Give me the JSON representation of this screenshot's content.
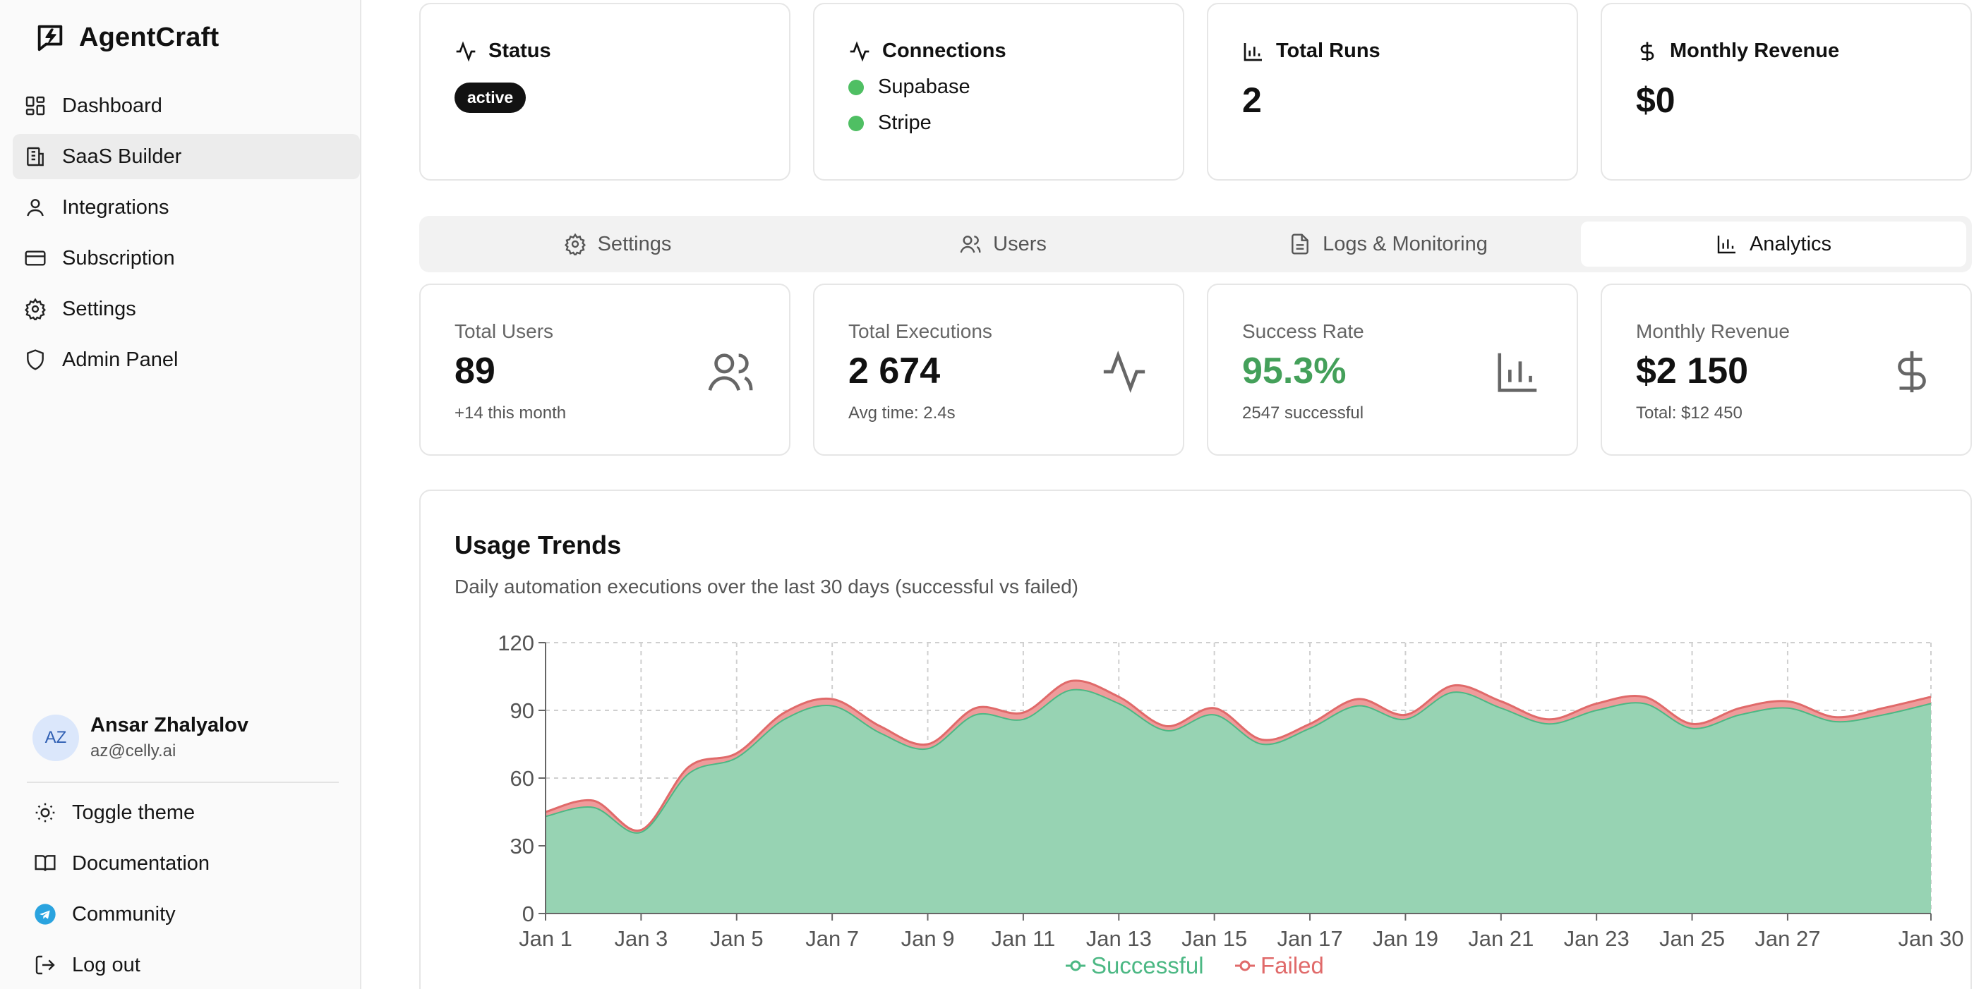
{
  "brand": {
    "name": "AgentCraft"
  },
  "sidebar": {
    "items": [
      {
        "label": "Dashboard",
        "icon": "dashboard-icon"
      },
      {
        "label": "SaaS Builder",
        "icon": "building-icon",
        "active": true
      },
      {
        "label": "Integrations",
        "icon": "user-icon"
      },
      {
        "label": "Subscription",
        "icon": "credit-card-icon"
      },
      {
        "label": "Settings",
        "icon": "gear-icon"
      },
      {
        "label": "Admin Panel",
        "icon": "shield-icon"
      }
    ],
    "user": {
      "initials": "AZ",
      "name": "Ansar Zhalyalov",
      "email": "az@celly.ai"
    },
    "footer": [
      {
        "label": "Toggle theme",
        "icon": "sun-icon"
      },
      {
        "label": "Documentation",
        "icon": "book-icon"
      },
      {
        "label": "Community",
        "icon": "telegram-icon"
      },
      {
        "label": "Log out",
        "icon": "logout-icon"
      }
    ]
  },
  "overview": {
    "status": {
      "title": "Status",
      "badge": "active"
    },
    "connections": {
      "title": "Connections",
      "items": [
        "Supabase",
        "Stripe"
      ],
      "dot_color": "#4fbf63"
    },
    "runs": {
      "title": "Total Runs",
      "value": "2"
    },
    "revenue": {
      "title": "Monthly Revenue",
      "value": "$0"
    }
  },
  "tabs": [
    {
      "label": "Settings",
      "icon": "gear-icon"
    },
    {
      "label": "Users",
      "icon": "users-icon"
    },
    {
      "label": "Logs & Monitoring",
      "icon": "file-icon"
    },
    {
      "label": "Analytics",
      "icon": "bar-chart-icon",
      "active": true
    }
  ],
  "stats": [
    {
      "label": "Total Users",
      "value": "89",
      "sub": "+14 this month",
      "icon": "users-icon"
    },
    {
      "label": "Total Executions",
      "value": "2 674",
      "sub": "Avg time: 2.4s",
      "icon": "activity-icon"
    },
    {
      "label": "Success Rate",
      "value": "95.3%",
      "sub": "2547 successful",
      "icon": "bar-chart-icon",
      "value_color": "#44a05a"
    },
    {
      "label": "Monthly Revenue",
      "value": "$2 150",
      "sub": "Total: $12 450",
      "icon": "dollar-icon"
    }
  ],
  "usage": {
    "title": "Usage Trends",
    "description": "Daily automation executions over the last 30 days (successful vs failed)"
  },
  "chart_data": {
    "type": "area",
    "stacked": true,
    "x": [
      "Jan 1",
      "Jan 2",
      "Jan 3",
      "Jan 4",
      "Jan 5",
      "Jan 6",
      "Jan 7",
      "Jan 8",
      "Jan 9",
      "Jan 10",
      "Jan 11",
      "Jan 12",
      "Jan 13",
      "Jan 14",
      "Jan 15",
      "Jan 16",
      "Jan 17",
      "Jan 18",
      "Jan 19",
      "Jan 20",
      "Jan 21",
      "Jan 22",
      "Jan 23",
      "Jan 24",
      "Jan 25",
      "Jan 26",
      "Jan 27",
      "Jan 28",
      "Jan 29",
      "Jan 30"
    ],
    "x_tick_labels": [
      "Jan 1",
      "Jan 3",
      "Jan 5",
      "Jan 7",
      "Jan 9",
      "Jan 11",
      "Jan 13",
      "Jan 15",
      "Jan 17",
      "Jan 19",
      "Jan 21",
      "Jan 23",
      "Jan 25",
      "Jan 27",
      "Jan 30"
    ],
    "y_ticks": [
      0,
      30,
      60,
      90,
      120
    ],
    "ylim": [
      0,
      120
    ],
    "series": [
      {
        "name": "Successful",
        "color": "#4cb884",
        "values": [
          43,
          47,
          36,
          62,
          69,
          86,
          92,
          80,
          73,
          88,
          86,
          99,
          93,
          81,
          88,
          75,
          82,
          92,
          86,
          98,
          91,
          84,
          90,
          93,
          82,
          88,
          91,
          85,
          88,
          93
        ]
      },
      {
        "name": "Failed",
        "color": "#e06a6a",
        "values": [
          2,
          3,
          1,
          3,
          2,
          3,
          3,
          3,
          2,
          3,
          3,
          4,
          3,
          2,
          3,
          2,
          2,
          3,
          2,
          3,
          3,
          2,
          3,
          3,
          2,
          3,
          3,
          2,
          3,
          3
        ]
      }
    ],
    "grid": true,
    "legend": "bottom"
  }
}
